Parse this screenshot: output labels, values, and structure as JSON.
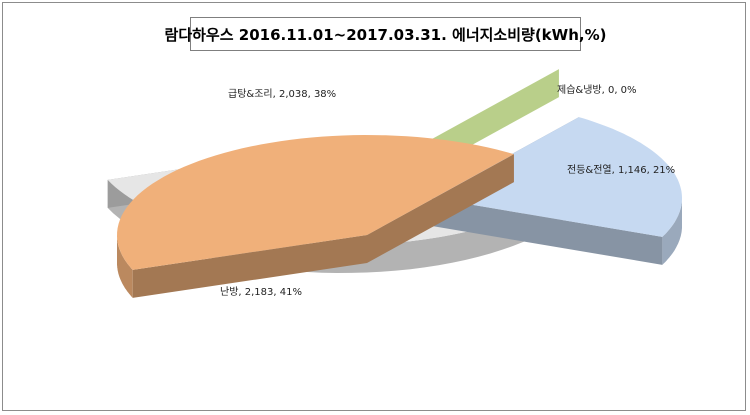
{
  "chart_data": {
    "type": "pie",
    "title": "람다하우스 2016.11.01~2017.03.31. 에너지소비량(kWh,%)",
    "slices": [
      {
        "name": "전등&전열",
        "value": 1146,
        "percent": 21,
        "color": "#c6d9f1",
        "label": "전등&전열, 1,146, 21%"
      },
      {
        "name": "급탕&조리",
        "value": 2038,
        "percent": 38,
        "color": "#e6e6e6",
        "label": "급탕&조리, 2,038, 38%"
      },
      {
        "name": "난방",
        "value": 2183,
        "percent": 41,
        "color": "#f0b07a",
        "label": "난방, 2,183, 41%"
      },
      {
        "name": "제습&냉방",
        "value": 0,
        "percent": 0,
        "color": "#9bbb59",
        "label": "제습&냉방, 0, 0%"
      }
    ]
  }
}
